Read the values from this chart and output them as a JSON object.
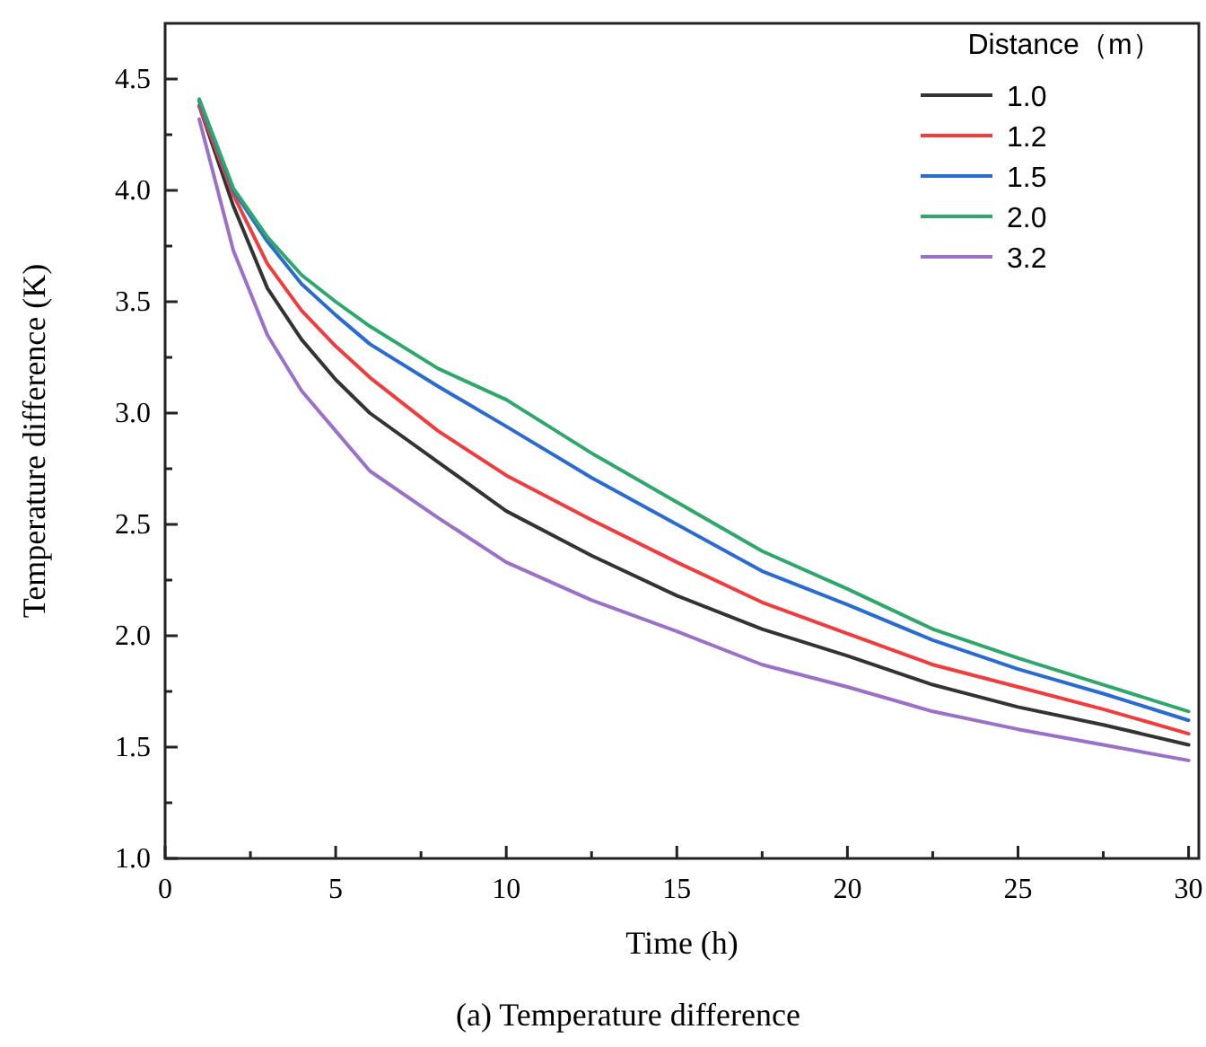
{
  "chart_data": {
    "type": "line",
    "xlabel": "Time (h)",
    "ylabel": "Temperature difference (K)",
    "legend_title": "Distance（m）",
    "legend": "top right",
    "line_style": "solid",
    "annotations": [
      "(a) Temperature difference"
    ],
    "xlim": [
      0,
      30.3
    ],
    "ylim": [
      1.0,
      4.75
    ],
    "xticks": [
      0,
      {
        "value": 2.5,
        "label": null
      },
      5,
      {
        "value": 7.5,
        "label": null
      },
      10,
      {
        "value": 12.5,
        "label": null
      },
      15,
      {
        "value": 17.5,
        "label": null
      },
      20,
      {
        "value": 22.5,
        "label": null
      },
      25,
      {
        "value": 27.5,
        "label": null
      },
      30
    ],
    "yticks": [
      {
        "value": 1.0,
        "label": "1.0"
      },
      {
        "value": 1.25,
        "label": null
      },
      {
        "value": 1.5,
        "label": "1.5"
      },
      {
        "value": 1.75,
        "label": null
      },
      {
        "value": 2.0,
        "label": "2.0"
      },
      {
        "value": 2.25,
        "label": null
      },
      {
        "value": 2.5,
        "label": "2.5"
      },
      {
        "value": 2.75,
        "label": null
      },
      {
        "value": 3.0,
        "label": "3.0"
      },
      {
        "value": 3.25,
        "label": null
      },
      {
        "value": 3.5,
        "label": "3.5"
      },
      {
        "value": 3.75,
        "label": null
      },
      {
        "value": 4.0,
        "label": "4.0"
      },
      {
        "value": 4.25,
        "label": null
      },
      {
        "value": 4.5,
        "label": "4.5"
      }
    ],
    "x": [
      1,
      2,
      3,
      4,
      5,
      6,
      8,
      10,
      12.5,
      15,
      17.5,
      20,
      22.5,
      25,
      27.5,
      30
    ],
    "series": [
      {
        "name": "1.0",
        "color": "#333333",
        "values": [
          4.38,
          3.93,
          3.56,
          3.33,
          3.15,
          3.0,
          2.78,
          2.56,
          2.36,
          2.18,
          2.03,
          1.91,
          1.78,
          1.68,
          1.6,
          1.51
        ]
      },
      {
        "name": "1.2",
        "color": "#f03c3c",
        "values": [
          4.38,
          3.98,
          3.67,
          3.46,
          3.3,
          3.16,
          2.92,
          2.72,
          2.52,
          2.33,
          2.15,
          2.01,
          1.87,
          1.77,
          1.67,
          1.56
        ]
      },
      {
        "name": "1.5",
        "color": "#2a6bd1",
        "values": [
          4.4,
          4.0,
          3.77,
          3.58,
          3.44,
          3.31,
          3.12,
          2.94,
          2.71,
          2.5,
          2.29,
          2.14,
          1.98,
          1.85,
          1.74,
          1.62
        ]
      },
      {
        "name": "2.0",
        "color": "#2ea86a",
        "values": [
          4.41,
          4.01,
          3.79,
          3.62,
          3.5,
          3.39,
          3.2,
          3.06,
          2.82,
          2.6,
          2.38,
          2.21,
          2.03,
          1.9,
          1.78,
          1.66
        ]
      },
      {
        "name": "3.2",
        "color": "#9a70c8",
        "values": [
          4.32,
          3.73,
          3.35,
          3.1,
          2.92,
          2.74,
          2.53,
          2.33,
          2.16,
          2.02,
          1.87,
          1.77,
          1.66,
          1.58,
          1.51,
          1.44
        ]
      }
    ]
  }
}
